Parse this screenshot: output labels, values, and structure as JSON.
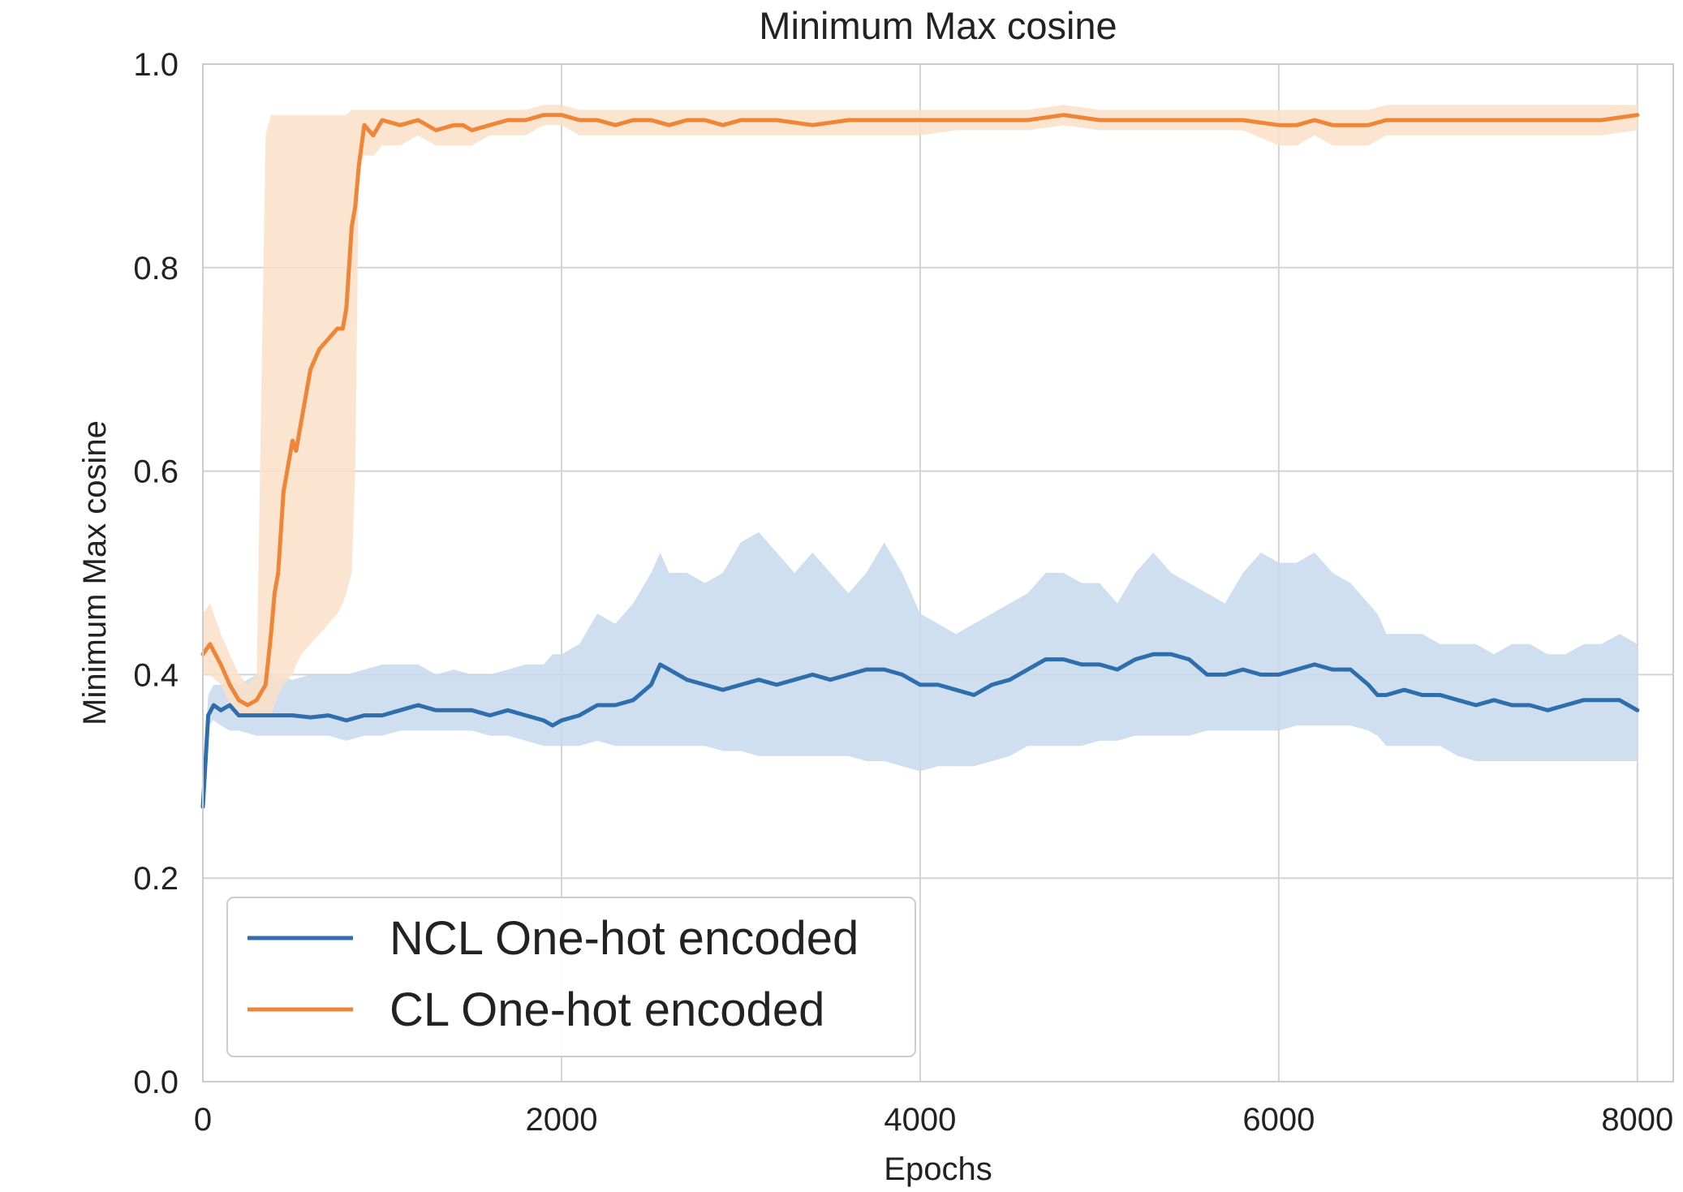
{
  "chart_data": {
    "type": "line",
    "title": "Minimum Max cosine",
    "xlabel": "Epochs",
    "ylabel": "Minimum Max cosine",
    "xlim": [
      0,
      8200
    ],
    "ylim": [
      0,
      1
    ],
    "xticks": [
      "0",
      "2000",
      "4000",
      "6000",
      "8000"
    ],
    "yticks": [
      "0.0",
      "0.2",
      "0.4",
      "0.6",
      "0.8",
      "1.0"
    ],
    "grid": true,
    "legend_position": "bottom-left",
    "series": [
      {
        "name": "NCL One-hot encoded",
        "color": "#2f6ead",
        "band_color": "#c8d9ec",
        "x": [
          0,
          30,
          60,
          100,
          150,
          200,
          300,
          400,
          500,
          600,
          700,
          800,
          900,
          1000,
          1100,
          1200,
          1300,
          1400,
          1500,
          1600,
          1700,
          1800,
          1900,
          1950,
          2000,
          2100,
          2200,
          2300,
          2400,
          2500,
          2550,
          2600,
          2700,
          2800,
          2900,
          3000,
          3100,
          3200,
          3300,
          3400,
          3500,
          3600,
          3700,
          3800,
          3900,
          4000,
          4100,
          4200,
          4300,
          4400,
          4500,
          4600,
          4700,
          4800,
          4900,
          5000,
          5100,
          5200,
          5300,
          5400,
          5500,
          5600,
          5700,
          5800,
          5900,
          6000,
          6100,
          6200,
          6300,
          6400,
          6500,
          6550,
          6600,
          6700,
          6800,
          6900,
          7000,
          7100,
          7200,
          7300,
          7400,
          7500,
          7600,
          7700,
          7800,
          7900,
          8000
        ],
        "values": [
          0.27,
          0.36,
          0.37,
          0.365,
          0.37,
          0.36,
          0.36,
          0.36,
          0.36,
          0.358,
          0.36,
          0.355,
          0.36,
          0.36,
          0.365,
          0.37,
          0.365,
          0.365,
          0.365,
          0.36,
          0.365,
          0.36,
          0.355,
          0.35,
          0.355,
          0.36,
          0.37,
          0.37,
          0.375,
          0.39,
          0.41,
          0.405,
          0.395,
          0.39,
          0.385,
          0.39,
          0.395,
          0.39,
          0.395,
          0.4,
          0.395,
          0.4,
          0.405,
          0.405,
          0.4,
          0.39,
          0.39,
          0.385,
          0.38,
          0.39,
          0.395,
          0.405,
          0.415,
          0.415,
          0.41,
          0.41,
          0.405,
          0.415,
          0.42,
          0.42,
          0.415,
          0.4,
          0.4,
          0.405,
          0.4,
          0.4,
          0.405,
          0.41,
          0.405,
          0.405,
          0.39,
          0.38,
          0.38,
          0.385,
          0.38,
          0.38,
          0.375,
          0.37,
          0.375,
          0.37,
          0.37,
          0.365,
          0.37,
          0.375,
          0.375,
          0.375,
          0.365
        ],
        "lower": [
          0.27,
          0.35,
          0.355,
          0.35,
          0.345,
          0.345,
          0.34,
          0.34,
          0.34,
          0.34,
          0.34,
          0.335,
          0.34,
          0.34,
          0.345,
          0.345,
          0.345,
          0.345,
          0.345,
          0.34,
          0.34,
          0.335,
          0.33,
          0.33,
          0.33,
          0.33,
          0.335,
          0.33,
          0.33,
          0.33,
          0.33,
          0.33,
          0.33,
          0.33,
          0.325,
          0.325,
          0.32,
          0.32,
          0.32,
          0.32,
          0.32,
          0.32,
          0.315,
          0.315,
          0.31,
          0.305,
          0.31,
          0.31,
          0.31,
          0.315,
          0.32,
          0.33,
          0.33,
          0.33,
          0.33,
          0.335,
          0.335,
          0.34,
          0.34,
          0.34,
          0.34,
          0.345,
          0.345,
          0.345,
          0.345,
          0.345,
          0.35,
          0.35,
          0.35,
          0.35,
          0.345,
          0.34,
          0.33,
          0.33,
          0.33,
          0.33,
          0.32,
          0.315,
          0.315,
          0.315,
          0.315,
          0.315,
          0.315,
          0.315,
          0.315,
          0.315,
          0.315
        ],
        "upper": [
          0.29,
          0.38,
          0.39,
          0.39,
          0.395,
          0.39,
          0.4,
          0.4,
          0.395,
          0.4,
          0.4,
          0.4,
          0.405,
          0.41,
          0.41,
          0.41,
          0.4,
          0.405,
          0.4,
          0.4,
          0.405,
          0.41,
          0.41,
          0.42,
          0.42,
          0.43,
          0.46,
          0.45,
          0.47,
          0.5,
          0.52,
          0.5,
          0.5,
          0.49,
          0.5,
          0.53,
          0.54,
          0.52,
          0.5,
          0.52,
          0.5,
          0.48,
          0.5,
          0.53,
          0.5,
          0.46,
          0.45,
          0.44,
          0.45,
          0.46,
          0.47,
          0.48,
          0.5,
          0.5,
          0.49,
          0.49,
          0.47,
          0.5,
          0.52,
          0.5,
          0.49,
          0.48,
          0.47,
          0.5,
          0.52,
          0.51,
          0.51,
          0.52,
          0.5,
          0.49,
          0.47,
          0.46,
          0.44,
          0.44,
          0.44,
          0.43,
          0.43,
          0.43,
          0.42,
          0.43,
          0.43,
          0.42,
          0.42,
          0.43,
          0.43,
          0.44,
          0.43
        ]
      },
      {
        "name": "CL One-hot encoded",
        "color": "#ee8537",
        "band_color": "#fbe0c8",
        "x": [
          0,
          40,
          100,
          150,
          200,
          250,
          300,
          350,
          380,
          400,
          420,
          450,
          500,
          520,
          550,
          600,
          650,
          700,
          750,
          780,
          800,
          830,
          850,
          870,
          900,
          950,
          1000,
          1100,
          1200,
          1300,
          1400,
          1450,
          1500,
          1600,
          1700,
          1800,
          1900,
          2000,
          2100,
          2200,
          2300,
          2400,
          2500,
          2600,
          2700,
          2800,
          2900,
          3000,
          3100,
          3200,
          3400,
          3600,
          3800,
          4000,
          4200,
          4400,
          4600,
          4800,
          5000,
          5200,
          5400,
          5600,
          5800,
          6000,
          6100,
          6200,
          6300,
          6400,
          6500,
          6600,
          6800,
          7000,
          7200,
          7400,
          7600,
          7800,
          8000
        ],
        "values": [
          0.42,
          0.43,
          0.41,
          0.39,
          0.375,
          0.37,
          0.375,
          0.39,
          0.44,
          0.48,
          0.5,
          0.58,
          0.63,
          0.62,
          0.65,
          0.7,
          0.72,
          0.73,
          0.74,
          0.74,
          0.76,
          0.84,
          0.86,
          0.9,
          0.94,
          0.93,
          0.945,
          0.94,
          0.945,
          0.935,
          0.94,
          0.94,
          0.935,
          0.94,
          0.945,
          0.945,
          0.95,
          0.95,
          0.945,
          0.945,
          0.94,
          0.945,
          0.945,
          0.94,
          0.945,
          0.945,
          0.94,
          0.945,
          0.945,
          0.945,
          0.94,
          0.945,
          0.945,
          0.945,
          0.945,
          0.945,
          0.945,
          0.95,
          0.945,
          0.945,
          0.945,
          0.945,
          0.945,
          0.94,
          0.94,
          0.945,
          0.94,
          0.94,
          0.94,
          0.945,
          0.945,
          0.945,
          0.945,
          0.945,
          0.945,
          0.945,
          0.95
        ],
        "lower": [
          0.4,
          0.4,
          0.39,
          0.37,
          0.36,
          0.36,
          0.36,
          0.36,
          0.36,
          0.37,
          0.38,
          0.39,
          0.4,
          0.41,
          0.42,
          0.43,
          0.44,
          0.45,
          0.46,
          0.47,
          0.48,
          0.5,
          0.6,
          0.9,
          0.91,
          0.91,
          0.92,
          0.92,
          0.93,
          0.92,
          0.92,
          0.92,
          0.92,
          0.93,
          0.93,
          0.93,
          0.94,
          0.94,
          0.93,
          0.93,
          0.93,
          0.93,
          0.93,
          0.93,
          0.93,
          0.93,
          0.93,
          0.93,
          0.93,
          0.93,
          0.93,
          0.93,
          0.93,
          0.93,
          0.935,
          0.935,
          0.935,
          0.94,
          0.935,
          0.935,
          0.935,
          0.935,
          0.935,
          0.92,
          0.92,
          0.93,
          0.92,
          0.92,
          0.92,
          0.93,
          0.93,
          0.93,
          0.93,
          0.93,
          0.93,
          0.93,
          0.935
        ],
        "upper": [
          0.46,
          0.47,
          0.44,
          0.42,
          0.4,
          0.39,
          0.4,
          0.93,
          0.95,
          0.95,
          0.95,
          0.95,
          0.95,
          0.95,
          0.95,
          0.95,
          0.95,
          0.95,
          0.95,
          0.95,
          0.95,
          0.955,
          0.955,
          0.955,
          0.955,
          0.955,
          0.955,
          0.955,
          0.955,
          0.955,
          0.955,
          0.955,
          0.955,
          0.955,
          0.955,
          0.955,
          0.96,
          0.96,
          0.955,
          0.955,
          0.955,
          0.955,
          0.955,
          0.955,
          0.955,
          0.955,
          0.955,
          0.955,
          0.955,
          0.955,
          0.955,
          0.955,
          0.955,
          0.955,
          0.955,
          0.955,
          0.955,
          0.96,
          0.955,
          0.955,
          0.955,
          0.955,
          0.955,
          0.955,
          0.955,
          0.955,
          0.955,
          0.955,
          0.955,
          0.96,
          0.96,
          0.96,
          0.96,
          0.96,
          0.96,
          0.96,
          0.96
        ]
      }
    ]
  }
}
